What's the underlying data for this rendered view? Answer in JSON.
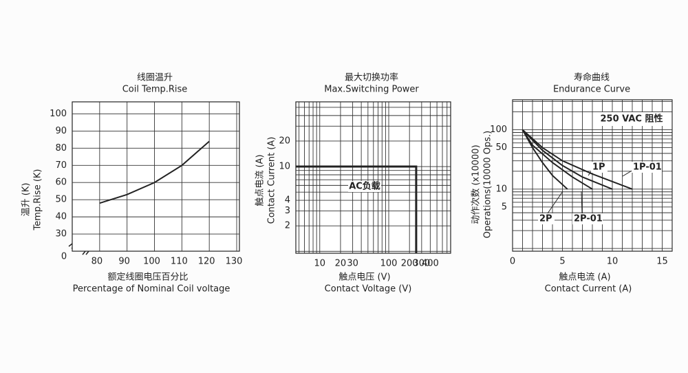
{
  "chart_data": [
    {
      "type": "line",
      "title": "线圈温升",
      "subtitle": "Coil Temp.Rise",
      "y_label": "温升 (K)",
      "y_label_en": "Temp.Rise (K)",
      "x_label": "额定线圈电压百分比",
      "x_label_en": "Percentage of Nominal Coil voltage",
      "origin_label": "0",
      "xlim": [
        70,
        131
      ],
      "ylim": [
        20,
        107
      ],
      "xticks": [
        80,
        90,
        100,
        110,
        120,
        130
      ],
      "yticks": [
        30,
        40,
        50,
        60,
        70,
        80,
        90,
        100
      ],
      "grid": true,
      "series": [
        {
          "color": "#222222",
          "x": [
            80,
            90,
            100,
            110,
            120
          ],
          "values": [
            48,
            53,
            60,
            70,
            84
          ]
        }
      ]
    },
    {
      "type": "line",
      "title": "最大切换功率",
      "subtitle": "Max.Switching  Power",
      "y_label": "触点电流 (A)",
      "y_label_en": "Contact Current (A)",
      "x_label": "触点电压 (V)",
      "x_label_en": "Contact Voltage (V)",
      "annotation": "AC负载",
      "xlog": true,
      "ylog": true,
      "xlim": [
        4.5,
        790
      ],
      "ylim": [
        0.95,
        58
      ],
      "xticks": [
        10,
        20,
        30,
        100,
        200,
        300,
        400
      ],
      "yticks": [
        2,
        3,
        4,
        10,
        20
      ],
      "xgrid": [
        5,
        6,
        7,
        8,
        9,
        10,
        20,
        30,
        40,
        50,
        60,
        70,
        80,
        90,
        100,
        200,
        300,
        400,
        500,
        600,
        700
      ],
      "ygrid": [
        1,
        2,
        3,
        4,
        5,
        6,
        7,
        8,
        9,
        10,
        20,
        30,
        40,
        50
      ],
      "series": [
        {
          "color": "#222222",
          "x": [
            4.5,
            250,
            250
          ],
          "values": [
            10,
            10,
            0.95
          ]
        }
      ]
    },
    {
      "type": "line",
      "title": "寿命曲线",
      "subtitle": "Endurance Curve",
      "y_label": "动作次数 (x10000)",
      "y_label_en": "Operations(10000 Ops.)",
      "x_label": "触点电流 (A)",
      "x_label_en": "Contact Current (A)",
      "annotation": "250 VAC  阻性",
      "ylog": true,
      "xlim": [
        0,
        16
      ],
      "ylim": [
        0.9,
        320
      ],
      "xticks": [
        0,
        5,
        10,
        15
      ],
      "yticks": [
        5,
        10,
        50,
        100
      ],
      "xgrid": [
        0,
        1,
        2,
        3,
        4,
        5,
        6,
        7,
        8,
        9,
        10,
        11,
        12,
        13,
        14,
        15,
        16
      ],
      "ygrid": [
        1,
        2,
        3,
        4,
        5,
        6,
        7,
        8,
        9,
        10,
        20,
        30,
        40,
        50,
        60,
        70,
        80,
        90,
        100,
        200,
        300
      ],
      "series": [
        {
          "name": "1P",
          "color": "#222222",
          "x": [
            1,
            3,
            5,
            7,
            10
          ],
          "values": [
            100,
            45,
            25,
            16,
            10
          ]
        },
        {
          "name": "1P-01",
          "color": "#222222",
          "x": [
            1,
            3,
            5,
            8,
            12
          ],
          "values": [
            100,
            50,
            30,
            18,
            10
          ]
        },
        {
          "name": "2P",
          "color": "#222222",
          "x": [
            1,
            2,
            3,
            4,
            5.5
          ],
          "values": [
            100,
            50,
            28,
            17,
            10
          ]
        },
        {
          "name": "2P-01",
          "color": "#222222",
          "x": [
            1,
            2,
            4,
            6,
            8
          ],
          "values": [
            100,
            55,
            28,
            16,
            10
          ]
        }
      ]
    }
  ]
}
